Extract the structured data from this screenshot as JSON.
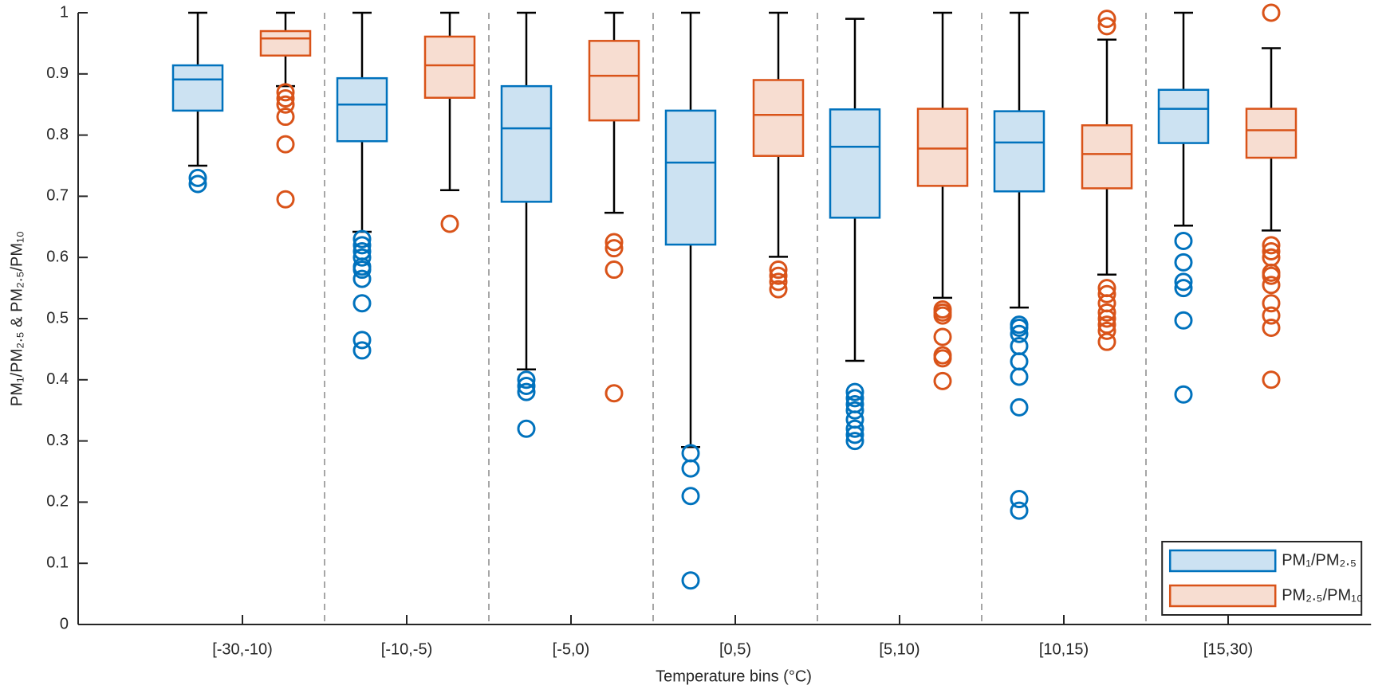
{
  "chart_data": {
    "type": "box",
    "x_label": "Temperature bins (°C)",
    "y_label": "PM₁/PM₂.₅ & PM₂.₅/PM₁₀",
    "categories": [
      "[-30,-10)",
      "[-10,-5)",
      "[-5,0)",
      "[0,5)",
      "[5,10)",
      "[10,15)",
      "[15,30)"
    ],
    "ylim": [
      0,
      1
    ],
    "yticks": [
      0,
      0.1,
      0.2,
      0.3,
      0.4,
      0.5,
      0.6,
      0.7,
      0.8,
      0.9,
      1
    ],
    "legend": "lower right",
    "separators": true,
    "series": [
      {
        "name": "PM₁/PM₂.₅",
        "color": "#0072bd",
        "fill": "#cce2f2",
        "boxes": [
          {
            "whislo": 0.75,
            "q1": 0.84,
            "med": 0.891,
            "q3": 0.914,
            "whishi": 1.0,
            "fliers": [
              0.73,
              0.72
            ]
          },
          {
            "whislo": 0.642,
            "q1": 0.79,
            "med": 0.85,
            "q3": 0.893,
            "whishi": 1.0,
            "fliers": [
              0.63,
              0.62,
              0.61,
              0.6,
              0.585,
              0.58,
              0.565,
              0.525,
              0.465,
              0.448
            ]
          },
          {
            "whislo": 0.417,
            "q1": 0.691,
            "med": 0.811,
            "q3": 0.88,
            "whishi": 1.0,
            "fliers": [
              0.4,
              0.39,
              0.38,
              0.32
            ]
          },
          {
            "whislo": 0.29,
            "q1": 0.621,
            "med": 0.755,
            "q3": 0.84,
            "whishi": 1.0,
            "fliers": [
              0.28,
              0.255,
              0.21,
              0.072
            ]
          },
          {
            "whislo": 0.431,
            "q1": 0.665,
            "med": 0.781,
            "q3": 0.842,
            "whishi": 0.99,
            "fliers": [
              0.38,
              0.37,
              0.36,
              0.35,
              0.335,
              0.32,
              0.31,
              0.3
            ]
          },
          {
            "whislo": 0.518,
            "q1": 0.708,
            "med": 0.788,
            "q3": 0.839,
            "whishi": 1.0,
            "fliers": [
              0.49,
              0.485,
              0.475,
              0.455,
              0.43,
              0.405,
              0.355,
              0.205,
              0.186
            ]
          },
          {
            "whislo": 0.652,
            "q1": 0.787,
            "med": 0.843,
            "q3": 0.874,
            "whishi": 1.0,
            "fliers": [
              0.627,
              0.592,
              0.56,
              0.55,
              0.497,
              0.376
            ]
          }
        ]
      },
      {
        "name": "PM₂.₅/PM₁₀",
        "color": "#d95319",
        "fill": "#f7ddd1",
        "boxes": [
          {
            "whislo": 0.88,
            "q1": 0.93,
            "med": 0.958,
            "q3": 0.97,
            "whishi": 1.0,
            "fliers": [
              0.87,
              0.86,
              0.85,
              0.83,
              0.785,
              0.695
            ]
          },
          {
            "whislo": 0.71,
            "q1": 0.861,
            "med": 0.914,
            "q3": 0.961,
            "whishi": 1.0,
            "fliers": [
              0.655
            ]
          },
          {
            "whislo": 0.673,
            "q1": 0.824,
            "med": 0.897,
            "q3": 0.954,
            "whishi": 1.0,
            "fliers": [
              0.625,
              0.615,
              0.58,
              0.378
            ]
          },
          {
            "whislo": 0.601,
            "q1": 0.766,
            "med": 0.833,
            "q3": 0.89,
            "whishi": 1.0,
            "fliers": [
              0.58,
              0.57,
              0.56,
              0.548
            ]
          },
          {
            "whislo": 0.534,
            "q1": 0.717,
            "med": 0.778,
            "q3": 0.843,
            "whishi": 1.0,
            "fliers": [
              0.515,
              0.51,
              0.505,
              0.47,
              0.44,
              0.435,
              0.398
            ]
          },
          {
            "whislo": 0.572,
            "q1": 0.713,
            "med": 0.769,
            "q3": 0.816,
            "whishi": 0.956,
            "fliers": [
              0.99,
              0.978,
              0.55,
              0.54,
              0.525,
              0.51,
              0.5,
              0.49,
              0.48,
              0.462
            ]
          },
          {
            "whislo": 0.644,
            "q1": 0.763,
            "med": 0.808,
            "q3": 0.843,
            "whishi": 0.942,
            "fliers": [
              1.0,
              0.62,
              0.61,
              0.6,
              0.575,
              0.57,
              0.555,
              0.525,
              0.505,
              0.485,
              0.4
            ]
          }
        ]
      }
    ]
  }
}
